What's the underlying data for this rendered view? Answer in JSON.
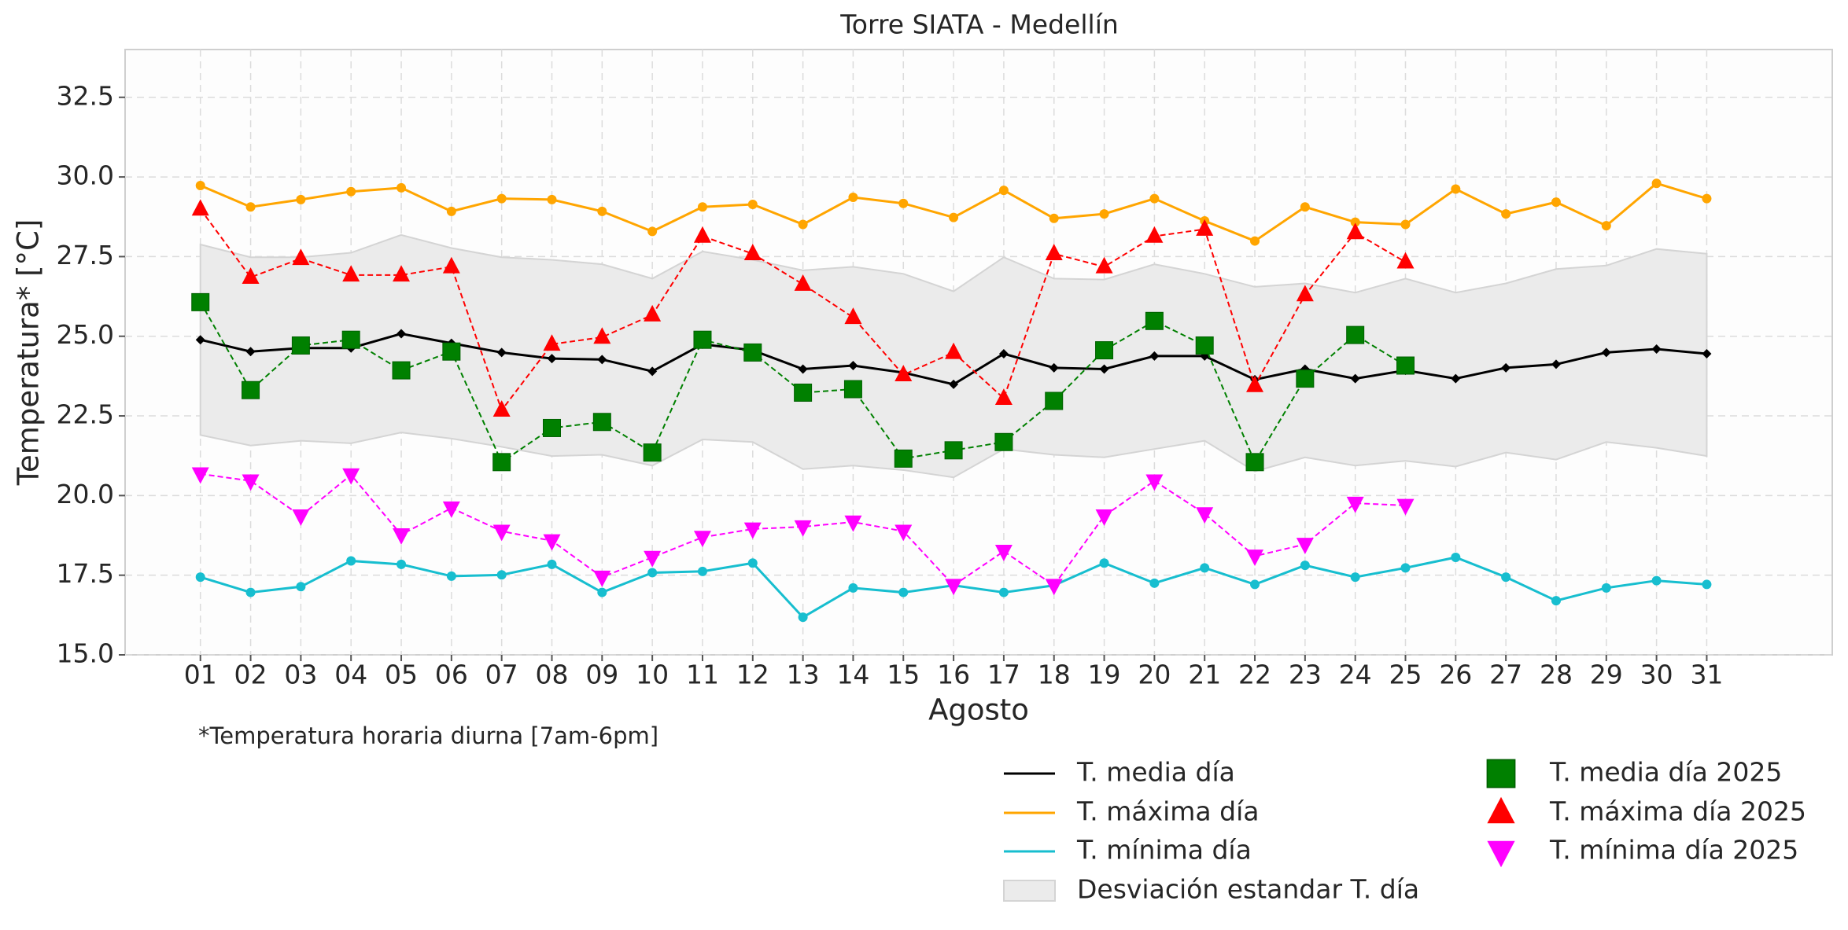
{
  "chart_data": {
    "type": "line",
    "title": "Torre SIATA - Medellín",
    "xlabel": "Agosto",
    "ylabel": "Temperatura* [°C]",
    "annotation": "*Temperatura horaria diurna [7am-6pm]",
    "categories": [
      "01",
      "02",
      "03",
      "04",
      "05",
      "06",
      "07",
      "08",
      "09",
      "10",
      "11",
      "12",
      "13",
      "14",
      "15",
      "16",
      "17",
      "18",
      "19",
      "20",
      "21",
      "22",
      "23",
      "24",
      "25",
      "26",
      "27",
      "28",
      "29",
      "30",
      "31"
    ],
    "ylim": [
      15,
      34
    ],
    "yticks": [
      {
        "value": 15,
        "label": "15.0"
      },
      17.5,
      {
        "value": 20,
        "label": "20.0"
      },
      22.5,
      {
        "value": 25,
        "label": "25.0"
      },
      27.5,
      {
        "value": 30,
        "label": "30.0"
      },
      32.5
    ],
    "grid": true,
    "band": {
      "name": "Desviación estandar T. día",
      "color": "#ebebeb",
      "upper": [
        27.88,
        27.48,
        27.48,
        27.62,
        28.18,
        27.77,
        27.48,
        27.4,
        27.26,
        26.81,
        27.66,
        27.4,
        27.07,
        27.18,
        26.96,
        26.41,
        27.48,
        26.81,
        26.78,
        27.26,
        26.96,
        26.55,
        26.66,
        26.37,
        26.81,
        26.37,
        26.66,
        27.11,
        27.22,
        27.74,
        27.59
      ],
      "lower": [
        21.9,
        21.57,
        21.72,
        21.64,
        21.98,
        21.79,
        21.53,
        21.24,
        21.28,
        20.94,
        21.76,
        21.68,
        20.83,
        20.94,
        20.8,
        20.57,
        21.46,
        21.28,
        21.2,
        21.46,
        21.72,
        20.76,
        21.2,
        20.94,
        21.09,
        20.91,
        21.35,
        21.13,
        21.68,
        21.5,
        21.24
      ]
    },
    "series": [
      {
        "name": "T. media día",
        "color": "#000000",
        "marker": "diamond",
        "dash": false,
        "values": [
          24.89,
          24.52,
          24.63,
          24.63,
          25.08,
          24.78,
          24.49,
          24.3,
          24.27,
          23.9,
          24.75,
          24.56,
          23.97,
          24.08,
          23.86,
          23.49,
          24.45,
          24.01,
          23.97,
          24.38,
          24.38,
          23.64,
          23.97,
          23.67,
          23.93,
          23.67,
          24.01,
          24.12,
          24.49,
          24.6,
          24.45
        ]
      },
      {
        "name": "T. máxima día",
        "color": "#ffa500",
        "marker": "circle",
        "dash": false,
        "values": [
          29.73,
          29.06,
          29.29,
          29.54,
          29.66,
          28.92,
          29.32,
          29.29,
          28.92,
          28.29,
          29.06,
          29.14,
          28.51,
          29.36,
          29.17,
          28.73,
          29.58,
          28.7,
          28.84,
          29.32,
          28.62,
          27.99,
          29.06,
          28.58,
          28.51,
          29.62,
          28.84,
          29.21,
          28.47,
          29.8,
          29.32
        ]
      },
      {
        "name": "T. mínima día",
        "color": "#17becf",
        "marker": "circle",
        "dash": false,
        "values": [
          17.44,
          16.96,
          17.14,
          17.95,
          17.84,
          17.47,
          17.51,
          17.84,
          16.96,
          17.58,
          17.62,
          17.88,
          16.18,
          17.1,
          16.96,
          17.18,
          16.96,
          17.18,
          17.88,
          17.25,
          17.73,
          17.21,
          17.81,
          17.44,
          17.73,
          18.06,
          17.44,
          16.7,
          17.1,
          17.33,
          17.21
        ]
      },
      {
        "name": "T. media día 2025",
        "color": "#008000",
        "marker": "square",
        "dash": true,
        "values": [
          26.07,
          23.31,
          24.71,
          24.89,
          23.93,
          24.52,
          21.05,
          22.12,
          22.31,
          21.35,
          24.89,
          24.49,
          23.23,
          23.34,
          21.16,
          21.42,
          21.68,
          22.97,
          24.56,
          25.48,
          24.71,
          21.05,
          23.67,
          25.04,
          24.08,
          null,
          null,
          null,
          null,
          null,
          null
        ]
      },
      {
        "name": "T. máxima día 2025",
        "color": "#ff0000",
        "marker": "triangle-up",
        "dash": true,
        "values": [
          28.99,
          26.85,
          27.44,
          26.92,
          26.92,
          27.18,
          22.68,
          24.75,
          24.97,
          25.67,
          28.14,
          27.59,
          26.63,
          25.59,
          23.79,
          24.49,
          23.05,
          27.59,
          27.18,
          28.14,
          28.36,
          23.45,
          26.3,
          28.25,
          27.33,
          null,
          null,
          null,
          null,
          null,
          null
        ]
      },
      {
        "name": "T. mínima día 2025",
        "color": "#ff00ff",
        "marker": "triangle-down",
        "dash": true,
        "values": [
          20.68,
          20.46,
          19.36,
          20.65,
          18.77,
          19.61,
          18.88,
          18.58,
          17.44,
          18.06,
          18.69,
          18.95,
          19.02,
          19.17,
          18.88,
          17.18,
          18.25,
          17.18,
          19.36,
          20.46,
          19.43,
          18.1,
          18.47,
          19.76,
          19.69,
          null,
          null,
          null,
          null,
          null,
          null
        ]
      }
    ]
  }
}
